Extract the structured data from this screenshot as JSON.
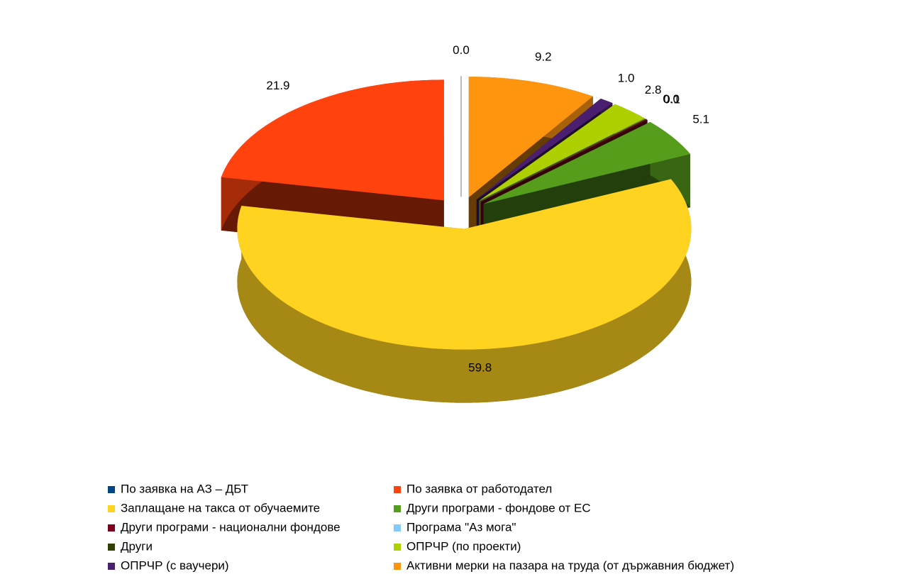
{
  "chart_data": {
    "type": "pie3d",
    "categories": [
      "По заявка на АЗ – ДБТ",
      "По заявка от работодател",
      "Заплащане на такса от обучаемите",
      "Други програми - фондове от ЕС",
      "Други програми - национални фондове",
      "Програма \"Аз мога\"",
      "Други",
      "ОПРЧР (по проекти)",
      "ОПРЧР (с ваучери)",
      "Активни мерки на пазара на труда (от държавния бюджет)"
    ],
    "values": [
      0.0,
      21.9,
      59.8,
      5.1,
      0.1,
      0.0,
      0,
      2.8,
      1.0,
      9.2
    ],
    "value_labels": [
      "0.0",
      "21.9",
      "59.8",
      "5.1",
      "0.1",
      "0.0",
      null,
      "2.8",
      "1.0",
      "9.2"
    ],
    "colors": [
      "#004586",
      "#ff420e",
      "#ffd320",
      "#579d1c",
      "#7e0021",
      "#83caff",
      "#314004",
      "#aecf00",
      "#4b1f6f",
      "#ff950e"
    ],
    "legend": "bottom"
  }
}
